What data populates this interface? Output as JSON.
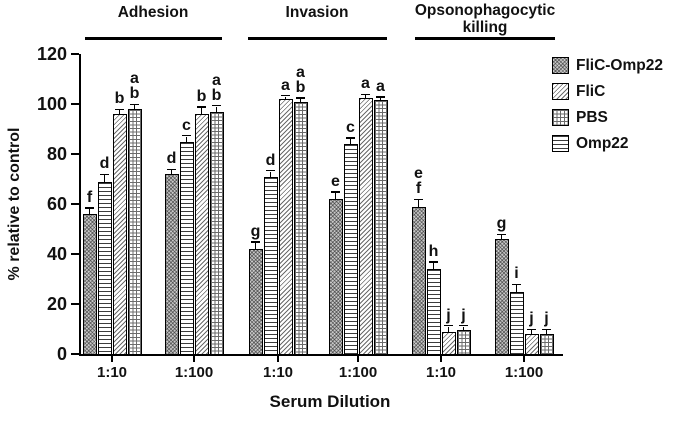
{
  "figure": {
    "background": "#ffffff",
    "ink_color": "#111111"
  },
  "chart_data": {
    "type": "bar",
    "title": "",
    "xlabel": "Serum Dilution",
    "ylabel": "% relative to control",
    "ylim": [
      0,
      120
    ],
    "yticks": [
      0,
      20,
      40,
      60,
      80,
      100,
      120
    ],
    "grid": "off",
    "legend_position": "right",
    "sections": [
      {
        "label_lines": [
          "Adhesion"
        ]
      },
      {
        "label_lines": [
          "Invasion"
        ]
      },
      {
        "label_lines": [
          "Opsonophagocytic",
          "killing"
        ]
      }
    ],
    "series": [
      {
        "name": "FliC-Omp22",
        "pattern": "dark-stipple"
      },
      {
        "name": "Omp22",
        "pattern": "horizontal"
      },
      {
        "name": "FliC",
        "pattern": "diagonal"
      },
      {
        "name": "PBS",
        "pattern": "grid"
      }
    ],
    "legend": [
      {
        "label": "FliC-Omp22",
        "pattern": "dark-stipple"
      },
      {
        "label": "FliC",
        "pattern": "diagonal"
      },
      {
        "label": "PBS",
        "pattern": "grid"
      },
      {
        "label": "Omp22",
        "pattern": "horizontal"
      }
    ],
    "groups": [
      {
        "section": "Adhesion",
        "dilution": "1:10",
        "values": [
          56,
          69,
          96,
          98
        ],
        "errors": [
          2,
          2.5,
          1.5,
          1.5
        ],
        "letters": [
          [
            "f"
          ],
          [
            "d"
          ],
          [
            "b"
          ],
          [
            "a",
            "b"
          ]
        ]
      },
      {
        "section": "Adhesion",
        "dilution": "1:100",
        "values": [
          72,
          85,
          96,
          97
        ],
        "errors": [
          1.5,
          2,
          2.5,
          2
        ],
        "letters": [
          [
            "d"
          ],
          [
            "c"
          ],
          [
            "b"
          ],
          [
            "a",
            "b"
          ]
        ]
      },
      {
        "section": "Invasion",
        "dilution": "1:10",
        "values": [
          42,
          71,
          102,
          101
        ],
        "errors": [
          2.5,
          2,
          1,
          1
        ],
        "letters": [
          [
            "g"
          ],
          [
            "d"
          ],
          [
            "a"
          ],
          [
            "a",
            "b"
          ]
        ]
      },
      {
        "section": "Invasion",
        "dilution": "1:100",
        "values": [
          62,
          84,
          102.5,
          101.5
        ],
        "errors": [
          2.5,
          2,
          1,
          1
        ],
        "letters": [
          [
            "e"
          ],
          [
            "c"
          ],
          [
            "a"
          ],
          [
            "a"
          ]
        ]
      },
      {
        "section": "Opsonophagocytic killing",
        "dilution": "1:10",
        "values": [
          59,
          34,
          9,
          9.5
        ],
        "errors": [
          2.5,
          2.5,
          2,
          1.5
        ],
        "letters": [
          [
            "e",
            "f"
          ],
          [
            "h"
          ],
          [
            "j"
          ],
          [
            "j"
          ]
        ]
      },
      {
        "section": "Opsonophagocytic killing",
        "dilution": "1:100",
        "values": [
          46,
          25,
          8,
          8
        ],
        "errors": [
          1.5,
          2.5,
          1.5,
          1.5
        ],
        "letters": [
          [
            "g"
          ],
          [
            "i"
          ],
          [
            "j"
          ],
          [
            "j"
          ]
        ]
      }
    ]
  }
}
